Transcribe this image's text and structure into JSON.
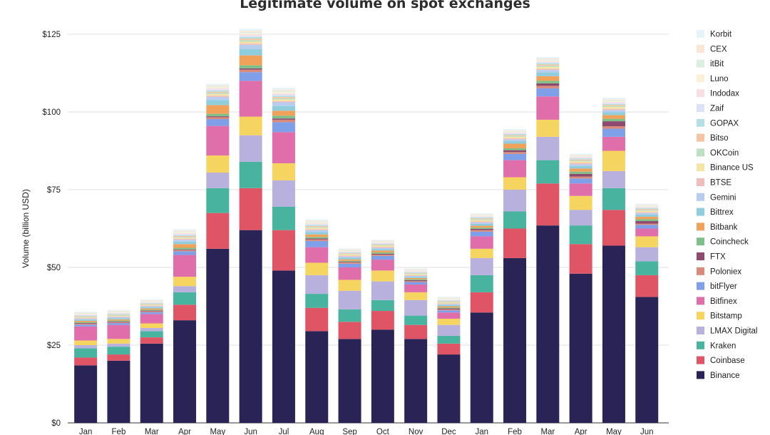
{
  "chart_data": {
    "type": "bar",
    "stacked": true,
    "title": "Legitimate volume on spot exchanges",
    "ylabel": "Volume (billion USD)",
    "xlabel": "",
    "ylim": [
      0,
      125
    ],
    "yticks": [
      0,
      25,
      50,
      75,
      100,
      125
    ],
    "ytick_labels": [
      "$0",
      "$25",
      "$50",
      "$75",
      "$100",
      "$125"
    ],
    "grid": true,
    "legend_position": "right",
    "categories": [
      "Jan",
      "Feb",
      "Mar",
      "Apr",
      "May",
      "Jun",
      "Jul",
      "Aug",
      "Sep",
      "Oct",
      "Nov",
      "Dec",
      "Jan",
      "Feb",
      "Mar",
      "Apr",
      "May",
      "Jun"
    ],
    "series": [
      {
        "name": "Binance",
        "color": "#2a2356",
        "values": [
          18.5,
          20,
          25.5,
          33,
          56,
          62,
          49,
          29.5,
          27,
          30,
          27,
          22,
          35.5,
          53,
          63.5,
          48,
          57,
          40.5
        ]
      },
      {
        "name": "Coinbase",
        "color": "#e05565",
        "values": [
          2.5,
          2,
          2,
          5,
          11.5,
          13.5,
          13,
          7.5,
          5.5,
          6,
          4.5,
          3.5,
          6.5,
          9.5,
          13.5,
          9.5,
          11.5,
          7
        ]
      },
      {
        "name": "Kraken",
        "color": "#48b39f",
        "values": [
          3,
          2.5,
          2,
          4,
          8,
          8.5,
          7.5,
          4.5,
          4,
          3.5,
          3,
          2.5,
          5.5,
          5.5,
          7.5,
          6,
          7,
          4.5
        ]
      },
      {
        "name": "LMAX Digital",
        "color": "#b8b0dd",
        "values": [
          1,
          1,
          1,
          2,
          5,
          8.5,
          8.5,
          6,
          6,
          6,
          5,
          3.5,
          5.5,
          7,
          7.5,
          5,
          5.5,
          4.5
        ]
      },
      {
        "name": "Bitstamp",
        "color": "#f6d460",
        "values": [
          1.5,
          1.5,
          1.5,
          3,
          5.5,
          6,
          5.5,
          4,
          3.5,
          3.5,
          2.5,
          2,
          3,
          4,
          5.5,
          4.5,
          6.5,
          3.5
        ]
      },
      {
        "name": "Bitfinex",
        "color": "#df6eaa",
        "values": [
          4.5,
          4.5,
          3,
          7,
          9.5,
          11.5,
          10,
          5,
          4,
          3.5,
          2.5,
          2,
          4,
          5.5,
          7.5,
          4,
          4.5,
          2.5
        ]
      },
      {
        "name": "bitFlyer",
        "color": "#7fa0e8",
        "values": [
          0.6,
          0.6,
          0.6,
          1.2,
          2.2,
          2.8,
          3.2,
          2,
          1.2,
          1.2,
          0.8,
          0.7,
          1.5,
          2,
          2.6,
          1.6,
          2.6,
          1.2
        ]
      },
      {
        "name": "Poloniex",
        "color": "#d98a7a",
        "values": [
          0.3,
          0.3,
          0.3,
          0.4,
          0.6,
          0.8,
          0.8,
          0.5,
          0.4,
          0.4,
          0.3,
          0.3,
          0.5,
          0.6,
          0.8,
          0.6,
          0.8,
          0.4
        ]
      },
      {
        "name": "FTX",
        "color": "#8e4a6e",
        "values": [
          0.2,
          0.2,
          0.2,
          0.2,
          0.3,
          0.4,
          0.4,
          0.3,
          0.2,
          0.3,
          0.3,
          0.3,
          0.4,
          0.6,
          0.8,
          0.9,
          1.6,
          0.8
        ]
      },
      {
        "name": "Coincheck",
        "color": "#7fbf8a",
        "values": [
          0.3,
          0.3,
          0.3,
          0.5,
          0.8,
          1,
          0.9,
          0.5,
          0.3,
          0.4,
          0.3,
          0.3,
          0.4,
          0.6,
          0.8,
          0.7,
          0.8,
          0.6
        ]
      },
      {
        "name": "Bitbank",
        "color": "#f0a25a",
        "values": [
          0.4,
          0.4,
          0.4,
          1.2,
          2.8,
          3.2,
          1.6,
          0.8,
          0.5,
          0.6,
          0.4,
          0.4,
          0.6,
          1.5,
          1.5,
          1,
          1.2,
          0.8
        ]
      },
      {
        "name": "Bittrex",
        "color": "#8fcddd",
        "values": [
          0.4,
          0.4,
          0.4,
          0.8,
          1.6,
          2,
          1.5,
          0.8,
          0.5,
          0.5,
          0.4,
          0.4,
          0.6,
          0.8,
          1.2,
          0.8,
          0.9,
          0.7
        ]
      },
      {
        "name": "Gemini",
        "color": "#b7cdf0",
        "values": [
          0.3,
          0.3,
          0.3,
          0.6,
          1,
          1.4,
          1.2,
          0.6,
          0.4,
          0.4,
          0.3,
          0.3,
          0.5,
          0.6,
          0.8,
          0.6,
          0.7,
          0.5
        ]
      },
      {
        "name": "BTSE",
        "color": "#f1bcbc",
        "values": [
          0.2,
          0.2,
          0.2,
          0.3,
          0.4,
          0.4,
          0.4,
          0.3,
          0.3,
          0.3,
          0.2,
          0.2,
          0.3,
          0.3,
          0.4,
          0.4,
          0.4,
          0.3
        ]
      },
      {
        "name": "Binance US",
        "color": "#f6e3a6",
        "values": [
          0.2,
          0.2,
          0.2,
          0.3,
          0.5,
          0.6,
          0.5,
          0.4,
          0.4,
          0.4,
          0.3,
          0.3,
          0.4,
          0.5,
          0.6,
          0.5,
          0.6,
          0.4
        ]
      },
      {
        "name": "OKCoin",
        "color": "#bde0c4",
        "values": [
          0.2,
          0.2,
          0.2,
          0.3,
          0.4,
          0.5,
          0.4,
          0.3,
          0.2,
          0.2,
          0.2,
          0.2,
          0.3,
          0.3,
          0.4,
          0.3,
          0.4,
          0.3
        ]
      },
      {
        "name": "Bitso",
        "color": "#f4c4a3",
        "values": [
          0.2,
          0.2,
          0.2,
          0.3,
          0.4,
          0.5,
          0.4,
          0.3,
          0.2,
          0.2,
          0.2,
          0.2,
          0.3,
          0.3,
          0.4,
          0.3,
          0.3,
          0.3
        ]
      },
      {
        "name": "GOPAX",
        "color": "#b5e0e3",
        "values": [
          0.2,
          0.2,
          0.2,
          0.3,
          0.4,
          0.5,
          0.4,
          0.3,
          0.2,
          0.2,
          0.2,
          0.2,
          0.3,
          0.3,
          0.4,
          0.3,
          0.3,
          0.3
        ]
      },
      {
        "name": "Zaif",
        "color": "#dde2f7",
        "values": [
          0.2,
          0.2,
          0.2,
          0.3,
          0.4,
          0.4,
          0.4,
          0.3,
          0.2,
          0.2,
          0.2,
          0.2,
          0.2,
          0.3,
          0.3,
          0.3,
          0.3,
          0.2
        ]
      },
      {
        "name": "Indodax",
        "color": "#f8dfe3",
        "values": [
          0.2,
          0.2,
          0.2,
          0.3,
          0.4,
          0.4,
          0.4,
          0.3,
          0.2,
          0.2,
          0.2,
          0.2,
          0.2,
          0.3,
          0.3,
          0.3,
          0.3,
          0.2
        ]
      },
      {
        "name": "Luno",
        "color": "#fbf1d6",
        "values": [
          0.2,
          0.2,
          0.2,
          0.3,
          0.3,
          0.4,
          0.4,
          0.3,
          0.2,
          0.2,
          0.2,
          0.2,
          0.2,
          0.2,
          0.3,
          0.2,
          0.3,
          0.2
        ]
      },
      {
        "name": "itBit",
        "color": "#dcefe2",
        "values": [
          0.2,
          0.2,
          0.2,
          0.3,
          0.3,
          0.4,
          0.4,
          0.3,
          0.2,
          0.2,
          0.2,
          0.2,
          0.2,
          0.2,
          0.3,
          0.2,
          0.3,
          0.2
        ]
      },
      {
        "name": "CEX",
        "color": "#fbe5d6",
        "values": [
          0.2,
          0.2,
          0.2,
          0.3,
          0.3,
          0.4,
          0.4,
          0.3,
          0.2,
          0.2,
          0.2,
          0.2,
          0.2,
          0.2,
          0.3,
          0.2,
          0.3,
          0.2
        ]
      },
      {
        "name": "Korbit",
        "color": "#e4f4f9",
        "values": [
          0.3,
          0.3,
          0.3,
          0.4,
          0.5,
          0.6,
          0.6,
          0.4,
          0.3,
          0.3,
          0.3,
          0.3,
          0.3,
          0.4,
          0.5,
          0.4,
          0.5,
          0.4
        ]
      }
    ]
  }
}
